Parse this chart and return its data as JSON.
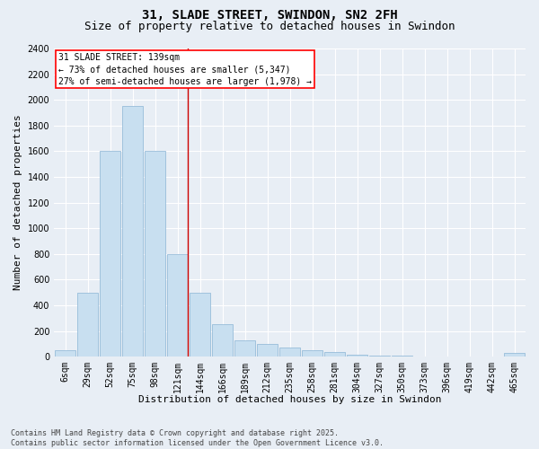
{
  "title": "31, SLADE STREET, SWINDON, SN2 2FH",
  "subtitle": "Size of property relative to detached houses in Swindon",
  "xlabel": "Distribution of detached houses by size in Swindon",
  "ylabel": "Number of detached properties",
  "bar_color": "#c8dff0",
  "bar_edge_color": "#8ab4d4",
  "background_color": "#e8eef5",
  "grid_color": "#ffffff",
  "categories": [
    "6sqm",
    "29sqm",
    "52sqm",
    "75sqm",
    "98sqm",
    "121sqm",
    "144sqm",
    "166sqm",
    "189sqm",
    "212sqm",
    "235sqm",
    "258sqm",
    "281sqm",
    "304sqm",
    "327sqm",
    "350sqm",
    "373sqm",
    "396sqm",
    "419sqm",
    "442sqm",
    "465sqm"
  ],
  "values": [
    50,
    500,
    1600,
    1950,
    1600,
    800,
    500,
    250,
    130,
    100,
    70,
    50,
    35,
    15,
    10,
    8,
    4,
    3,
    2,
    1,
    30
  ],
  "ylim": [
    0,
    2400
  ],
  "yticks": [
    0,
    200,
    400,
    600,
    800,
    1000,
    1200,
    1400,
    1600,
    1800,
    2000,
    2200,
    2400
  ],
  "property_bin_index": 5,
  "vline_color": "#cc0000",
  "annotation_text": "31 SLADE STREET: 139sqm\n← 73% of detached houses are smaller (5,347)\n27% of semi-detached houses are larger (1,978) →",
  "footnote": "Contains HM Land Registry data © Crown copyright and database right 2025.\nContains public sector information licensed under the Open Government Licence v3.0.",
  "title_fontsize": 10,
  "subtitle_fontsize": 9,
  "label_fontsize": 8,
  "tick_fontsize": 7,
  "annotation_fontsize": 7,
  "footnote_fontsize": 6
}
